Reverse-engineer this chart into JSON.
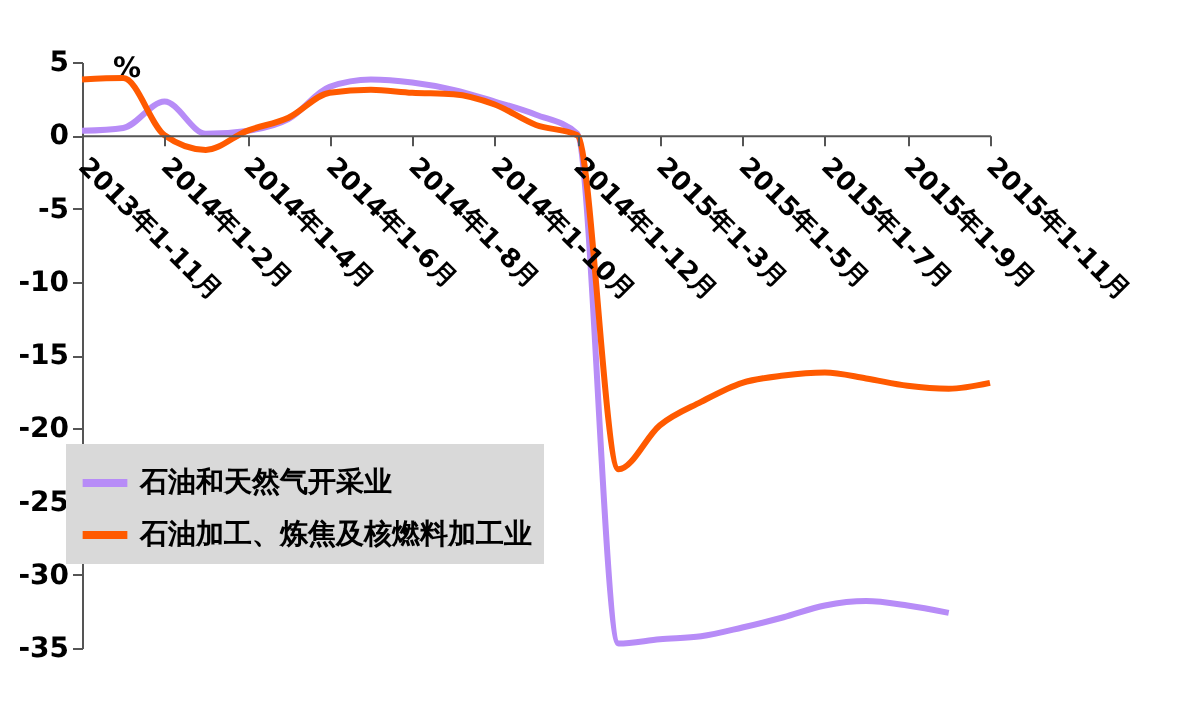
{
  "chart_data": {
    "type": "line",
    "ylabel": "%",
    "categories": [
      "2013年1-11月",
      null,
      "2014年1-2月",
      null,
      "2014年1-4月",
      null,
      "2014年1-6月",
      null,
      "2014年1-8月",
      null,
      "2014年1-10月",
      null,
      "2014年1-12月",
      null,
      "2015年1-3月",
      null,
      "2015年1-5月",
      null,
      "2015年1-7月",
      null,
      "2015年1-9月",
      null,
      "2015年1-11月"
    ],
    "series": [
      {
        "name": "石油和天然气开采业",
        "color": "#b78cf7",
        "values": [
          0.3,
          0.5,
          2.3,
          0.1,
          0.3,
          1.1,
          3.3,
          3.8,
          3.6,
          3.1,
          2.3,
          1.4,
          0.1,
          -34.7,
          -34.4,
          -34.2,
          -33.6,
          -32.9,
          -32.1,
          -31.8,
          -32.1,
          -32.6,
          null
        ]
      },
      {
        "name": "石油加工、炼焦及核燃料加工业",
        "color": "#ff5a00",
        "values": [
          3.8,
          3.9,
          0.0,
          -1.0,
          0.3,
          1.2,
          2.9,
          3.1,
          2.9,
          2.8,
          2.1,
          0.7,
          0.0,
          -22.8,
          -19.8,
          -18.2,
          -16.9,
          -16.4,
          -16.2,
          -16.6,
          -17.1,
          -17.3,
          -16.9
        ]
      }
    ],
    "ylim": [
      -35,
      5
    ],
    "yticks": [
      -35,
      -30,
      -25,
      -20,
      -15,
      -10,
      -5,
      0,
      5
    ],
    "grid": false,
    "legend": "left",
    "marker": "none",
    "line_style": "solid"
  }
}
